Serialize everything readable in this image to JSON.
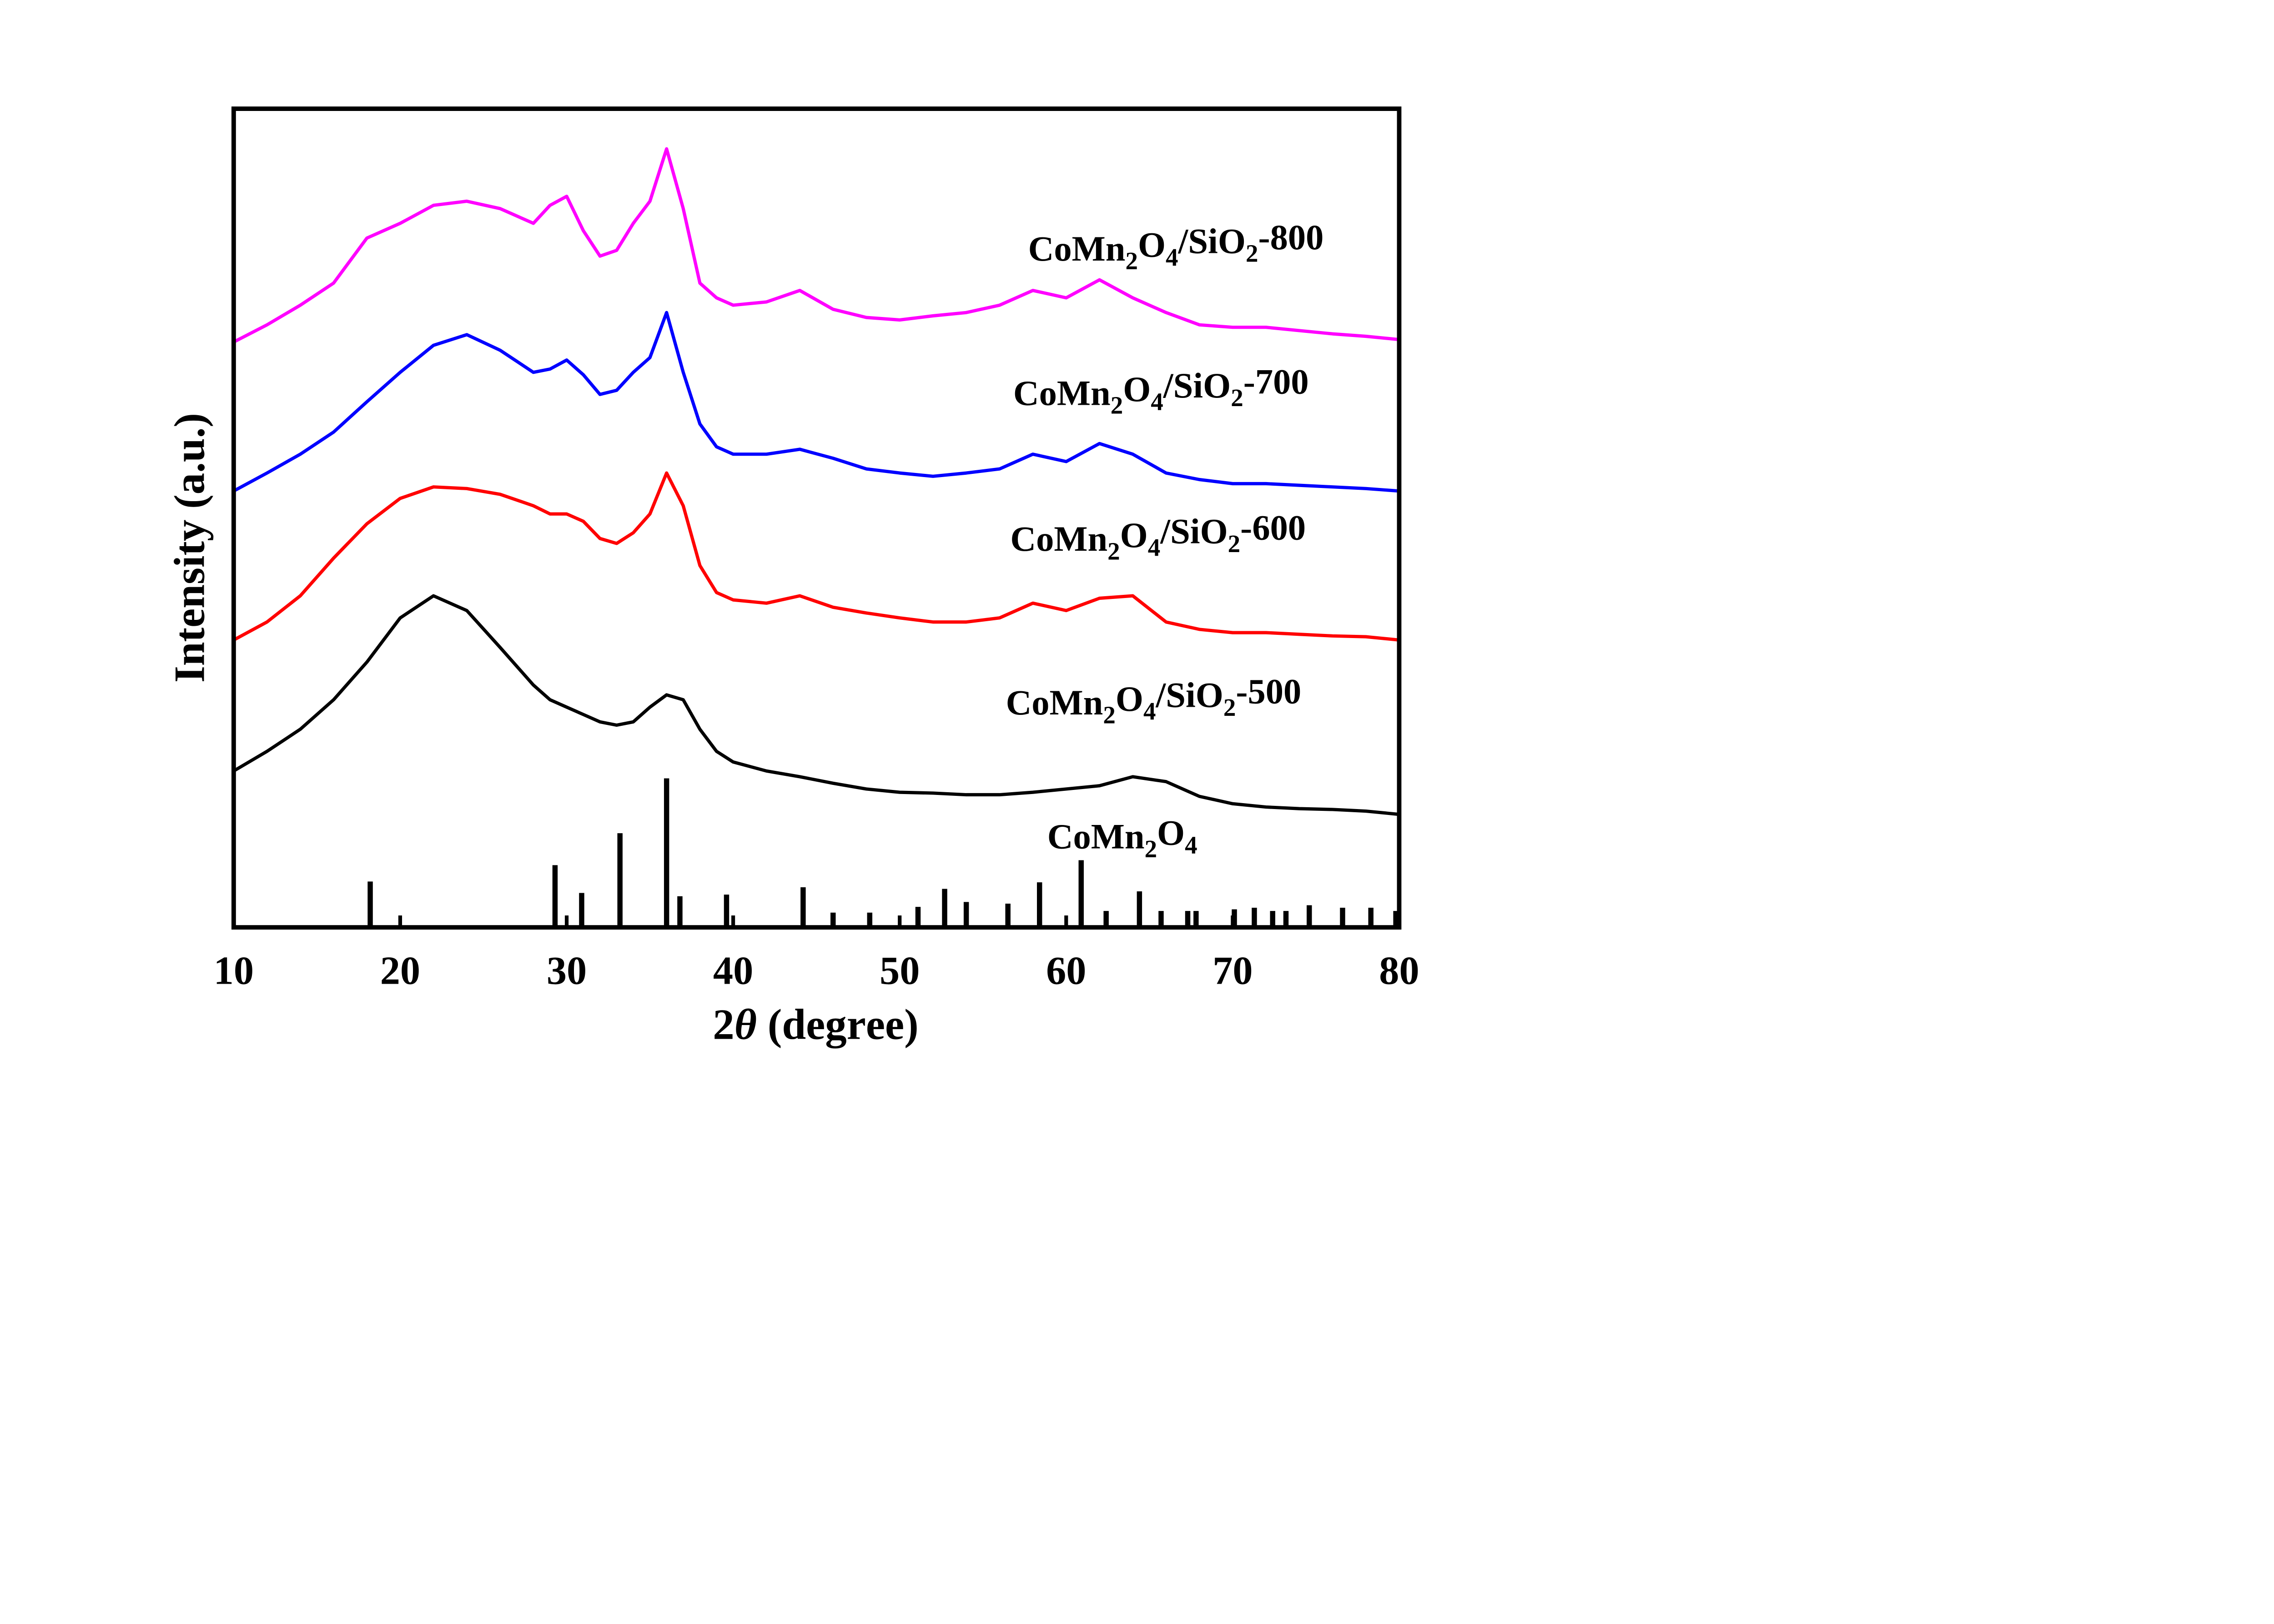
{
  "chart_data": {
    "type": "line",
    "xlabel": "2θ  (degree)",
    "ylabel": "Intensity (a.u.)",
    "xlim": [
      10,
      80
    ],
    "xticks": [
      10,
      20,
      30,
      40,
      50,
      60,
      70,
      80
    ],
    "ylim": [
      0,
      100
    ],
    "x": [
      10,
      12,
      14,
      16,
      18,
      20,
      22,
      24,
      26,
      28,
      29,
      30,
      31,
      32,
      33,
      34,
      35,
      36,
      37,
      38,
      39,
      40,
      42,
      44,
      46,
      48,
      50,
      52,
      54,
      56,
      58,
      60,
      62,
      64,
      66,
      68,
      70,
      72,
      74,
      76,
      78,
      80
    ],
    "series": [
      {
        "name": "CoMn2O4/SiO2-500",
        "color": "#000000",
        "values": [
          19.1,
          21.5,
          24.2,
          27.8,
          32.4,
          37.8,
          40.5,
          38.7,
          34.2,
          29.6,
          27.8,
          26.9,
          26.0,
          25.1,
          24.7,
          25.1,
          26.9,
          28.4,
          27.8,
          24.2,
          21.5,
          20.2,
          19.1,
          18.4,
          17.6,
          16.9,
          16.5,
          16.4,
          16.2,
          16.2,
          16.5,
          16.9,
          17.3,
          18.4,
          17.8,
          16.0,
          15.1,
          14.7,
          14.5,
          14.4,
          14.2,
          13.8
        ]
      },
      {
        "name": "CoMn2O4/SiO2-600",
        "color": "#ff0000",
        "values": [
          35.1,
          37.3,
          40.5,
          45.1,
          49.3,
          52.4,
          53.8,
          53.6,
          52.9,
          51.5,
          50.5,
          50.5,
          49.6,
          47.5,
          46.9,
          48.2,
          50.5,
          55.5,
          51.5,
          44.2,
          40.9,
          40.0,
          39.6,
          40.5,
          39.1,
          38.4,
          37.8,
          37.3,
          37.3,
          37.8,
          39.6,
          38.7,
          40.2,
          40.5,
          37.3,
          36.4,
          36.0,
          36.0,
          35.8,
          35.6,
          35.5,
          35.1
        ]
      },
      {
        "name": "CoMn2O4/SiO2-700",
        "color": "#0000ff",
        "values": [
          53.3,
          55.5,
          57.8,
          60.5,
          64.2,
          67.8,
          71.1,
          72.4,
          70.5,
          67.8,
          68.2,
          69.3,
          67.5,
          65.1,
          65.6,
          67.8,
          69.6,
          75.1,
          67.8,
          61.5,
          58.7,
          57.8,
          57.8,
          58.4,
          57.3,
          56.0,
          55.5,
          55.1,
          55.5,
          56.0,
          57.8,
          56.9,
          59.1,
          57.8,
          55.5,
          54.7,
          54.2,
          54.2,
          54.0,
          53.8,
          53.6,
          53.3
        ]
      },
      {
        "name": "CoMn2O4/SiO2-800",
        "color": "#ff00ff",
        "values": [
          71.5,
          73.6,
          76.0,
          78.7,
          84.2,
          86.0,
          88.2,
          88.7,
          87.8,
          86.0,
          88.2,
          89.3,
          85.1,
          82.0,
          82.7,
          86.0,
          88.7,
          95.1,
          87.8,
          78.7,
          76.9,
          76.0,
          76.4,
          77.8,
          75.5,
          74.5,
          74.2,
          74.7,
          75.1,
          76.0,
          77.8,
          76.9,
          79.1,
          76.9,
          75.1,
          73.6,
          73.3,
          73.3,
          72.9,
          72.5,
          72.2,
          71.8
        ]
      }
    ],
    "reference": {
      "name": "CoMn2O4",
      "color": "#000000",
      "x": [
        18.2,
        29.3,
        30.9,
        33.2,
        36.0,
        36.8,
        39.6,
        44.2,
        46.0,
        48.2,
        51.1,
        52.7,
        54.0,
        56.5,
        58.4,
        60.9,
        62.4,
        64.4,
        65.7,
        67.3,
        67.8,
        70.1,
        71.3,
        72.4,
        73.2,
        74.6,
        76.6,
        78.3,
        79.8
      ],
      "values": [
        5.6,
        7.6,
        4.2,
        11.5,
        18.2,
        3.8,
        4.0,
        4.9,
        1.8,
        1.8,
        2.5,
        4.7,
        3.1,
        2.9,
        5.5,
        8.2,
        2.0,
        4.4,
        2.0,
        2.0,
        2.0,
        2.2,
        2.4,
        2.0,
        2.0,
        2.7,
        2.4,
        2.4,
        2.0
      ]
    }
  }
}
